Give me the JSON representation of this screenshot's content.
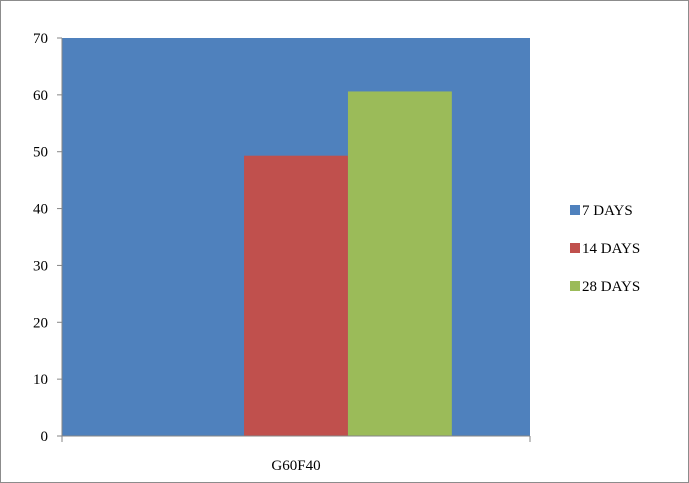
{
  "chart_data": {
    "type": "bar",
    "categories": [
      "G60F40"
    ],
    "series": [
      {
        "name": "7 DAYS",
        "values": [
          70
        ],
        "color": "#4F81BD"
      },
      {
        "name": "14 DAYS",
        "values": [
          49.3
        ],
        "color": "#C0504D"
      },
      {
        "name": "28 DAYS",
        "values": [
          60.6
        ],
        "color": "#9BBB59"
      }
    ],
    "yticks": [
      0,
      10,
      20,
      30,
      40,
      50,
      60,
      70
    ],
    "ylim": [
      0,
      70
    ],
    "title": "",
    "xlabel": "",
    "ylabel": "",
    "grid": false,
    "legend_position": "right"
  }
}
